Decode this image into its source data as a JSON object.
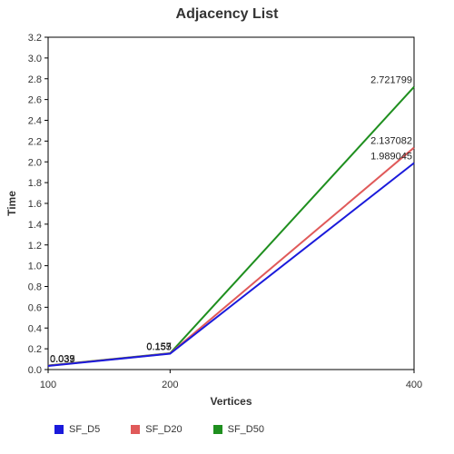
{
  "chart_data": {
    "type": "line",
    "title": "Adjacency List",
    "xlabel": "Vertices",
    "ylabel": "Time",
    "x": [
      100,
      200,
      400
    ],
    "xlim": [
      100,
      400
    ],
    "ylim": [
      0,
      3.2
    ],
    "xticks": [
      "100",
      "200",
      "400"
    ],
    "yticks": [
      "0.0",
      "0.2",
      "0.4",
      "0.6",
      "0.8",
      "1.0",
      "1.2",
      "1.4",
      "1.6",
      "1.8",
      "2.0",
      "2.2",
      "2.4",
      "2.6",
      "2.8",
      "3.0",
      "3.2"
    ],
    "legend_position": "bottom",
    "series": [
      {
        "name": "SF_D5",
        "color": "#1a1adb",
        "values": [
          0.035,
          0.153,
          1.989045
        ],
        "labels": [
          "0.035",
          "0.153",
          "1.989045"
        ]
      },
      {
        "name": "SF_D20",
        "color": "#e05a5a",
        "values": [
          0.037,
          0.155,
          2.137082
        ],
        "labels": [
          "0.037",
          "0.155",
          "2.137082"
        ]
      },
      {
        "name": "SF_D50",
        "color": "#1f8f1f",
        "values": [
          0.039,
          0.157,
          2.721799
        ],
        "labels": [
          "0.039",
          "0.157",
          "2.721799"
        ]
      }
    ]
  }
}
